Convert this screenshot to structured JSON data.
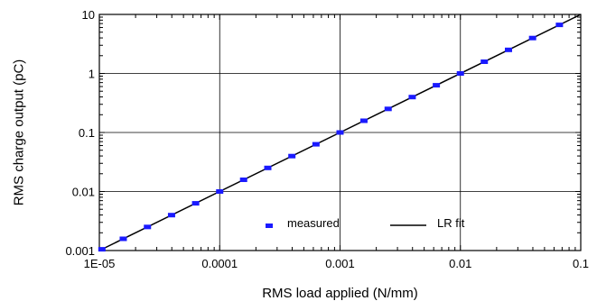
{
  "chart_data": {
    "type": "scatter",
    "title": "",
    "xlabel": "RMS load applied (N/mm)",
    "ylabel": "RMS charge output (pC)",
    "xscale": "log",
    "yscale": "log",
    "xlim": [
      1e-05,
      0.1
    ],
    "ylim": [
      0.001,
      10
    ],
    "grid": true,
    "legend_position": "lower-right inside plot",
    "x_ticks": [
      "1E-05",
      "0.0001",
      "0.001",
      "0.01",
      "0.1"
    ],
    "y_ticks": [
      "0.001",
      "0.01",
      "0.1",
      "1",
      "10"
    ],
    "series": [
      {
        "name": "measured",
        "kind": "markers",
        "color": "#1a1aff",
        "x": [
          1.05e-05,
          1.58e-05,
          2.51e-05,
          3.98e-05,
          6.31e-05,
          0.0001,
          0.000158,
          0.000251,
          0.000398,
          0.000631,
          0.001,
          0.00158,
          0.00251,
          0.00398,
          0.00631,
          0.01,
          0.0158,
          0.0251,
          0.0398,
          0.0665
        ],
        "y": [
          0.00105,
          0.00158,
          0.00251,
          0.00398,
          0.00631,
          0.01,
          0.0158,
          0.0251,
          0.0398,
          0.0631,
          0.1,
          0.158,
          0.251,
          0.398,
          0.631,
          1.0,
          1.58,
          2.51,
          3.98,
          6.65
        ]
      },
      {
        "name": "LR fit",
        "kind": "line",
        "color": "#000000",
        "x": [
          1e-05,
          0.1
        ],
        "y": [
          0.001,
          10
        ]
      }
    ]
  }
}
